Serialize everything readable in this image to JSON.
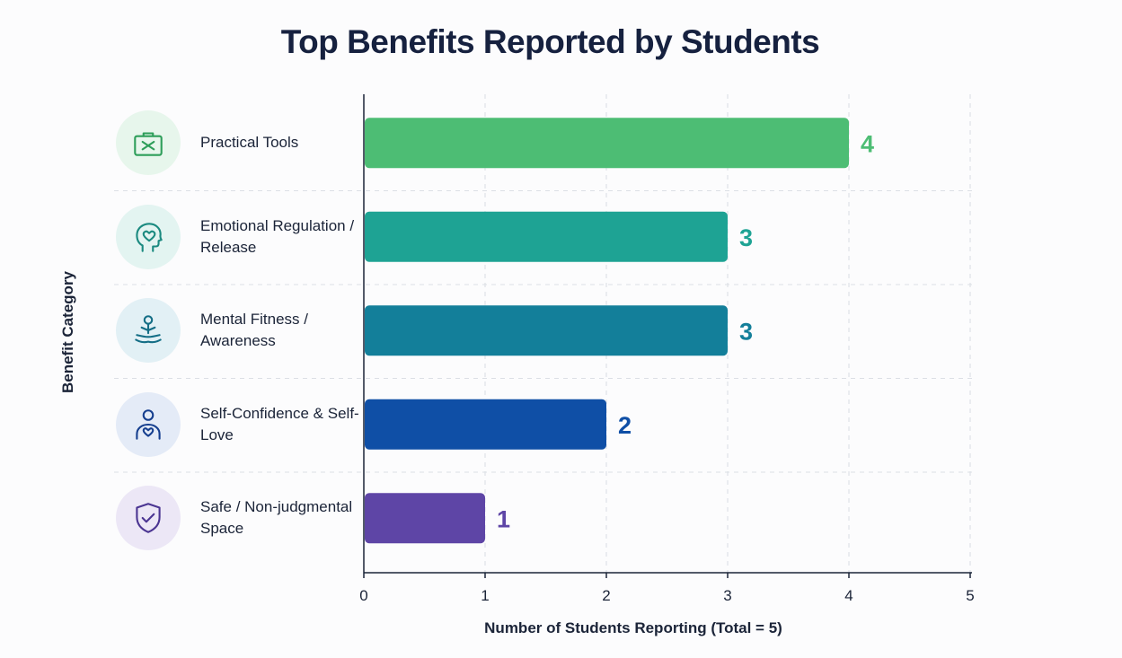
{
  "chart_data": {
    "type": "bar",
    "orientation": "horizontal",
    "title": "Top Benefits Reported by Students",
    "xlabel": "Number of Students Reporting (Total = 5)",
    "ylabel": "Benefit Category",
    "xlim": [
      0,
      5
    ],
    "xticks": [
      "0",
      "1",
      "2",
      "3",
      "4",
      "5"
    ],
    "grid": true,
    "categories": [
      "Practical Tools",
      "Emotional Regulation / Release",
      "Mental Fitness / Awareness",
      "Self-Confidence & Self-Love",
      "Safe / Non-judgmental Space"
    ],
    "values": [
      4,
      3,
      3,
      2,
      1
    ],
    "data_labels": [
      "4",
      "3",
      "3",
      "2",
      "1"
    ],
    "bar_colors": [
      "#4dbd74",
      "#1ea394",
      "#137f9a",
      "#0f4fa6",
      "#5e45a6"
    ],
    "icons": [
      {
        "name": "toolbox-icon",
        "bg": "#e7f6ec",
        "stroke": "#2e9e5a"
      },
      {
        "name": "head-heart-icon",
        "bg": "#e3f4f1",
        "stroke": "#1b8a80"
      },
      {
        "name": "meditation-icon",
        "bg": "#e2f0f5",
        "stroke": "#146e86"
      },
      {
        "name": "person-heart-icon",
        "bg": "#e4ebf7",
        "stroke": "#163f8f"
      },
      {
        "name": "shield-check-icon",
        "bg": "#ece7f6",
        "stroke": "#4b3592"
      }
    ]
  }
}
